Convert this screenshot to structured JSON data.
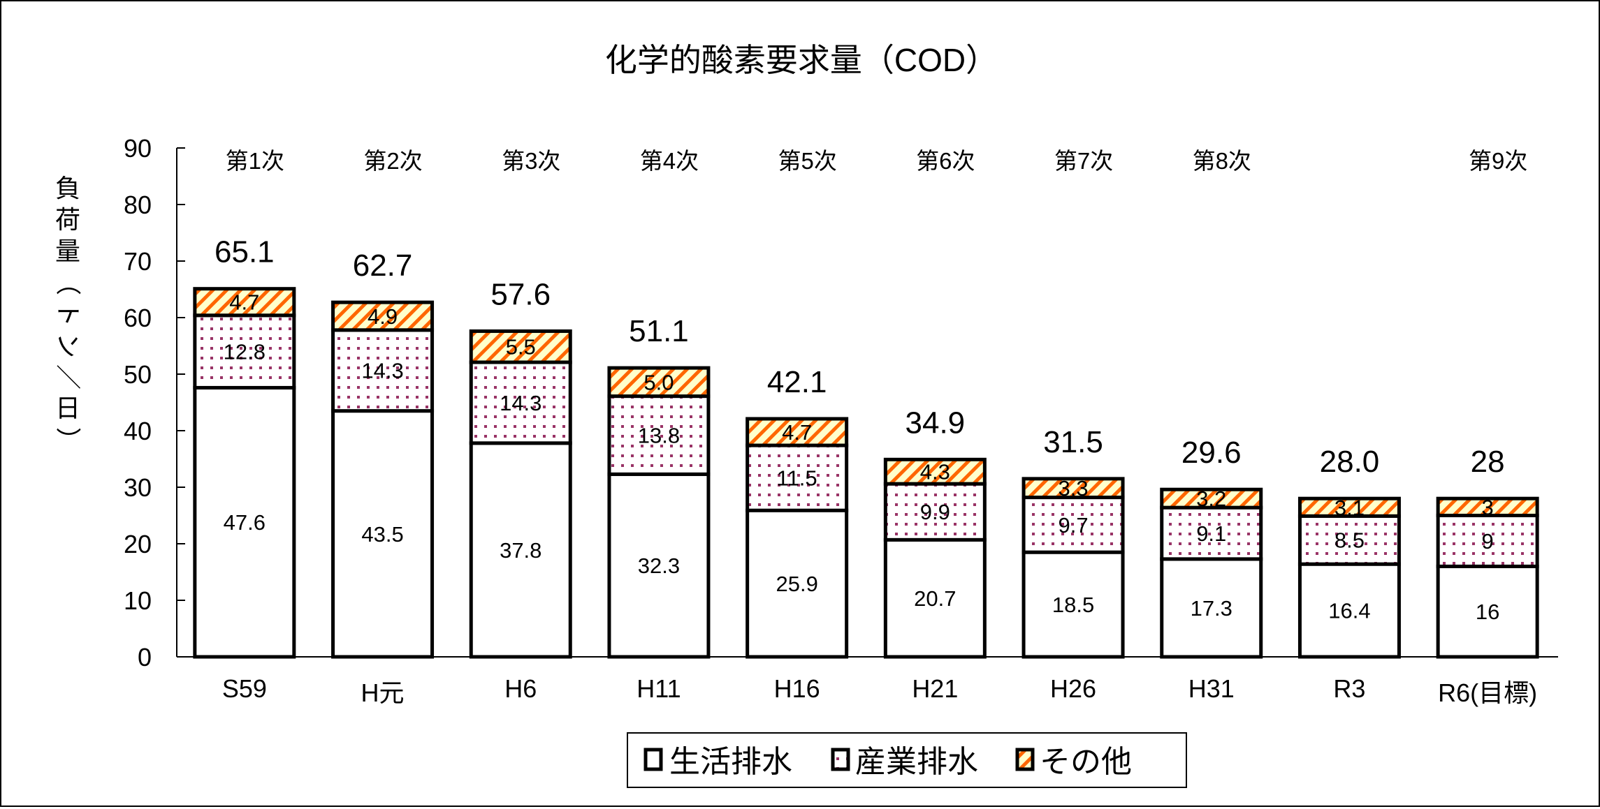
{
  "chart_data": {
    "type": "bar",
    "stacked": true,
    "title": "化学的酸素要求量（COD）",
    "xlabel": "",
    "ylabel": "負荷量（トン／日）",
    "ylim": [
      0,
      90
    ],
    "yticks": [
      0,
      10,
      20,
      30,
      40,
      50,
      60,
      70,
      80,
      90
    ],
    "grid": false,
    "legend_position": "bottom-center",
    "categories": [
      "S59",
      "H元",
      "H6",
      "H11",
      "H16",
      "H21",
      "H26",
      "H31",
      "R3",
      "R6(目標)"
    ],
    "period_labels": [
      "第1次",
      "第2次",
      "第3次",
      "第4次",
      "第5次",
      "第6次",
      "第7次",
      "第8次",
      "",
      "第9次"
    ],
    "series": [
      {
        "name": "生活排水",
        "pattern": "solid-white",
        "color": "#ffffff",
        "values": [
          47.6,
          43.5,
          37.8,
          32.3,
          25.9,
          20.7,
          18.5,
          17.3,
          16.4,
          16
        ],
        "labels": [
          "47.6",
          "43.5",
          "37.8",
          "32.3",
          "25.9",
          "20.7",
          "18.5",
          "17.3",
          "16.4",
          "16"
        ]
      },
      {
        "name": "産業排水",
        "pattern": "dots",
        "color": "#993366",
        "values": [
          12.8,
          14.3,
          14.3,
          13.8,
          11.5,
          9.9,
          9.7,
          9.1,
          8.5,
          9
        ],
        "labels": [
          "12.8",
          "14.3",
          "14.3",
          "13.8",
          "11.5",
          "9.9",
          "9.7",
          "9.1",
          "8.5",
          "9"
        ]
      },
      {
        "name": "その他",
        "pattern": "diagonal-stripes",
        "color": "#ff6600",
        "values": [
          4.7,
          4.9,
          5.5,
          5.0,
          4.7,
          4.3,
          3.3,
          3.2,
          3.1,
          3
        ],
        "labels": [
          "4.7",
          "4.9",
          "5.5",
          "5.0",
          "4.7",
          "4.3",
          "3.3",
          "3.2",
          "3.1",
          "3"
        ]
      }
    ],
    "totals": [
      65.1,
      62.7,
      57.6,
      51.1,
      42.1,
      34.9,
      31.5,
      29.6,
      28.0,
      28
    ],
    "total_labels": [
      "65.1",
      "62.7",
      "57.6",
      "51.1",
      "42.1",
      "34.9",
      "31.5",
      "29.6",
      "28.0",
      "28"
    ]
  },
  "colors": {
    "dot": "#993366",
    "stripe": "#ff6600",
    "stripe_bg": "#ffffcc",
    "outline": "#000000"
  }
}
